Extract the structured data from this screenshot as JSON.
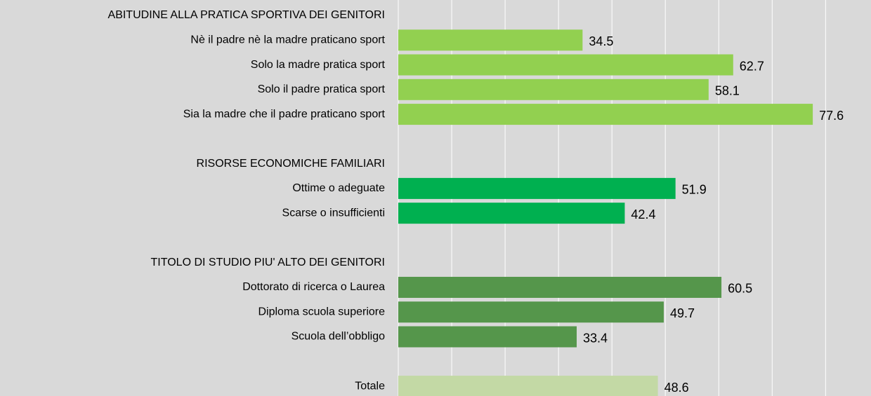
{
  "chart_data": {
    "type": "hbar",
    "categories": [
      "ABITUDINE ALLA PRATICA SPORTIVA DEI GENITORI",
      "Nè il padre nè la madre praticano sport",
      "Solo la madre pratica sport",
      "Solo il padre pratica sport",
      "Sia la madre che il padre praticano sport",
      null,
      "RISORSE ECONOMICHE FAMILIARI",
      "Ottime o adeguate ",
      "Scarse o insufficienti",
      null,
      "TITOLO DI STUDIO PIU' ALTO DEI GENITORI",
      "Dottorato di ricerca o Laurea",
      "Diploma scuola superiore",
      "Scuola dell’obbligo",
      null,
      "Totale"
    ],
    "values": [
      null,
      34.5,
      62.7,
      58.1,
      77.6,
      null,
      null,
      51.9,
      42.4,
      null,
      null,
      60.5,
      49.7,
      33.4,
      null,
      48.6
    ],
    "colors": [
      null,
      "#92d050",
      "#92d050",
      "#92d050",
      "#92d050",
      null,
      null,
      "#00b050",
      "#00b050",
      null,
      null,
      "#55964b",
      "#55964b",
      "#55964b",
      null,
      "#c3d9a5"
    ],
    "xlim": [
      0,
      88.5
    ],
    "xticks": [
      0,
      10,
      20,
      30,
      40,
      50,
      60,
      70,
      80
    ],
    "grid": true
  }
}
